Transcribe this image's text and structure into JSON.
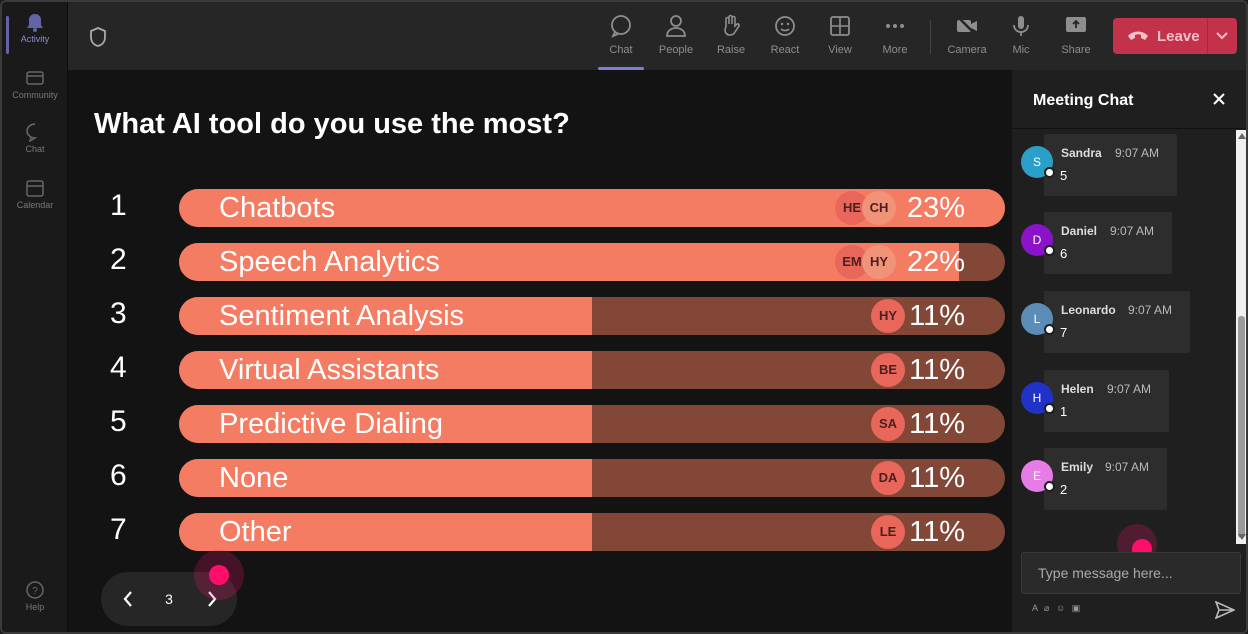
{
  "rail": {
    "items": [
      {
        "label": "Activity"
      },
      {
        "label": "Community"
      },
      {
        "label": "Chat"
      },
      {
        "label": "Calendar"
      },
      {
        "label": "Help"
      }
    ]
  },
  "toolbar": {
    "chat": "Chat",
    "people": "People",
    "raise": "Raise",
    "react": "React",
    "view": "View",
    "more": "More",
    "camera": "Camera",
    "mic": "Mic",
    "share": "Share",
    "leave": "Leave"
  },
  "poll": {
    "question": "What AI tool do you use the most?",
    "options": [
      {
        "num": "1",
        "label": "Chatbots",
        "percent_text": "23%",
        "fill": 1.0,
        "avatars": [
          "HE",
          "CH"
        ]
      },
      {
        "num": "2",
        "label": "Speech Analytics",
        "percent_text": "22%",
        "fill": 0.944,
        "avatars": [
          "EM",
          "HY"
        ]
      },
      {
        "num": "3",
        "label": "Sentiment Analysis",
        "percent_text": "11%",
        "fill": 0.5,
        "avatars": [
          "HY"
        ]
      },
      {
        "num": "4",
        "label": "Virtual Assistants",
        "percent_text": "11%",
        "fill": 0.5,
        "avatars": [
          "BE"
        ]
      },
      {
        "num": "5",
        "label": "Predictive Dialing",
        "percent_text": "11%",
        "fill": 0.5,
        "avatars": [
          "SA"
        ]
      },
      {
        "num": "6",
        "label": "None",
        "percent_text": "11%",
        "fill": 0.5,
        "avatars": [
          "DA"
        ]
      },
      {
        "num": "7",
        "label": "Other",
        "percent_text": "11%",
        "fill": 0.5,
        "avatars": [
          "LE"
        ]
      }
    ]
  },
  "pager": {
    "page": "3"
  },
  "chat": {
    "title": "Meeting Chat",
    "messages": [
      {
        "initial": "S",
        "name": "Sandra",
        "time": "9:07 AM",
        "text": "5",
        "color": "#2aa0c8"
      },
      {
        "initial": "D",
        "name": "Daniel",
        "time": "9:07 AM",
        "text": "6",
        "color": "#8a12c9"
      },
      {
        "initial": "L",
        "name": "Leonardo",
        "time": "9:07 AM",
        "text": "7",
        "color": "#5b8db8"
      },
      {
        "initial": "H",
        "name": "Helen",
        "time": "9:07 AM",
        "text": "1",
        "color": "#2032c8"
      },
      {
        "initial": "E",
        "name": "Emily",
        "time": "9:07 AM",
        "text": "2",
        "color": "#e77ce6"
      }
    ],
    "placeholder": "Type message here..."
  },
  "colors": {
    "bar_fill": "#f47c63",
    "bar_track": "#824737",
    "leave": "#c4314b",
    "accent": "#6264a7"
  }
}
